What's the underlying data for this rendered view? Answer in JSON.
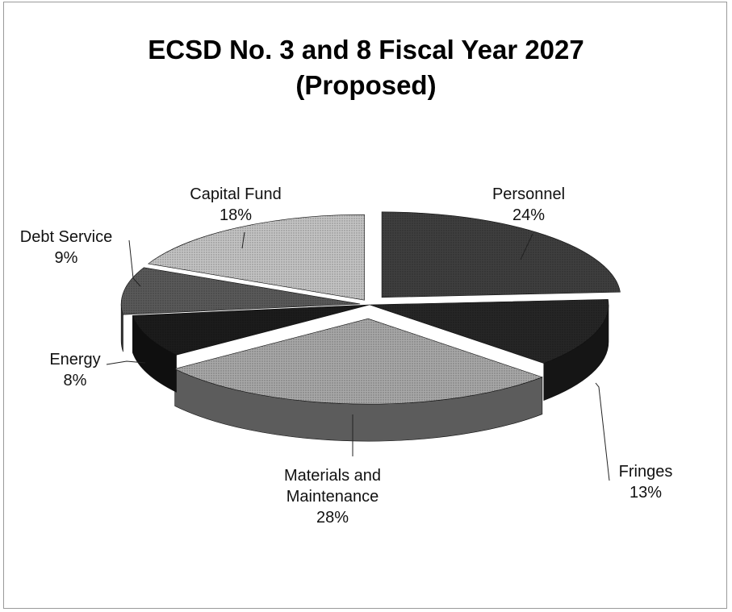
{
  "chart_data": {
    "type": "pie",
    "title": "ECSD No. 3 and 8 Fiscal Year 2027 (Proposed)",
    "title_lines": [
      "ECSD No. 3 and 8 Fiscal Year 2027",
      "(Proposed)"
    ],
    "three_d": true,
    "exploded": true,
    "legend": "none",
    "slices": [
      {
        "label": "Personnel",
        "lines": [
          "Personnel",
          "24%"
        ],
        "value": 24,
        "color": "#3f3f3f"
      },
      {
        "label": "Fringes",
        "lines": [
          "Fringes",
          "13%"
        ],
        "value": 13,
        "color": "#262626"
      },
      {
        "label": "Materials and Maintenance",
        "lines": [
          "Materials and",
          "Maintenance",
          "28%"
        ],
        "value": 28,
        "color": "#a8a8a8"
      },
      {
        "label": "Energy",
        "lines": [
          "Energy",
          "8%"
        ],
        "value": 8,
        "color": "#1c1c1c"
      },
      {
        "label": "Debt Service",
        "lines": [
          "Debt Service",
          "9%"
        ],
        "value": 9,
        "color": "#5a5a5a"
      },
      {
        "label": "Capital Fund",
        "lines": [
          "Capital Fund",
          "18%"
        ],
        "value": 18,
        "color": "#c4c4c4"
      }
    ]
  }
}
